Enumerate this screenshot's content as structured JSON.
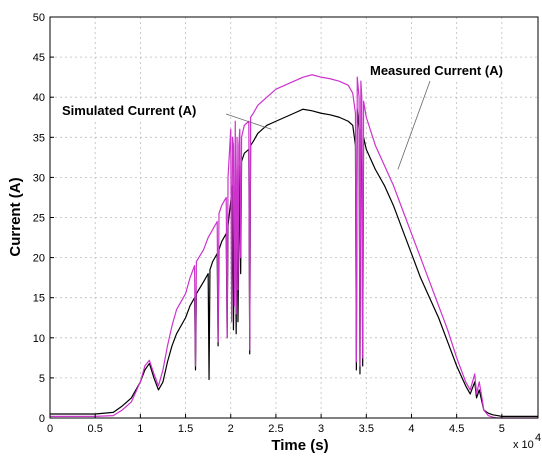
{
  "chart_data": {
    "type": "line",
    "title": "",
    "xlabel": "Time (s)",
    "ylabel": "Current (A)",
    "x_multiplier_label": "x 10",
    "x_multiplier_exponent": "4",
    "xlim": [
      0,
      5.4
    ],
    "ylim": [
      0,
      50
    ],
    "x_ticks": [
      0,
      0.5,
      1,
      1.5,
      2,
      2.5,
      3,
      3.5,
      4,
      4.5,
      5
    ],
    "x_tick_labels": [
      "0",
      "0.5",
      "1",
      "1.5",
      "2",
      "2.5",
      "3",
      "3.5",
      "4",
      "4.5",
      "5"
    ],
    "y_ticks": [
      0,
      5,
      10,
      15,
      20,
      25,
      30,
      35,
      40,
      45,
      50
    ],
    "y_tick_labels": [
      "0",
      "5",
      "10",
      "15",
      "20",
      "25",
      "30",
      "35",
      "40",
      "45",
      "50"
    ],
    "grid": true,
    "annotations": [
      {
        "text": "Measured Current (A)",
        "points_to": [
          3.85,
          31
        ]
      },
      {
        "text": "Simulated Current (A)",
        "points_to": [
          2.45,
          36
        ]
      }
    ],
    "series": [
      {
        "name": "Measured Current (A)",
        "color": "#000000",
        "x": [
          0,
          0.5,
          0.7,
          0.8,
          0.9,
          1.0,
          1.05,
          1.1,
          1.15,
          1.2,
          1.25,
          1.3,
          1.35,
          1.4,
          1.5,
          1.55,
          1.6,
          1.61,
          1.62,
          1.7,
          1.75,
          1.76,
          1.77,
          1.8,
          1.85,
          1.86,
          1.87,
          1.9,
          1.95,
          1.96,
          1.97,
          2.0,
          2.02,
          2.03,
          2.05,
          2.06,
          2.07,
          2.08,
          2.1,
          2.11,
          2.12,
          2.15,
          2.2,
          2.21,
          2.22,
          2.25,
          2.3,
          2.4,
          2.5,
          2.6,
          2.7,
          2.8,
          2.9,
          3.0,
          3.1,
          3.2,
          3.3,
          3.35,
          3.38,
          3.39,
          3.4,
          3.42,
          3.43,
          3.44,
          3.45,
          3.46,
          3.47,
          3.5,
          3.6,
          3.7,
          3.8,
          3.9,
          4.0,
          4.1,
          4.2,
          4.3,
          4.4,
          4.5,
          4.6,
          4.65,
          4.7,
          4.72,
          4.75,
          4.78,
          4.8,
          4.85,
          4.9,
          4.95,
          5.0,
          5.1,
          5.2,
          5.4
        ],
        "y": [
          0.5,
          0.5,
          0.7,
          1.5,
          2.5,
          4.5,
          6.0,
          6.8,
          5.0,
          3.5,
          4.5,
          7.0,
          9.0,
          10.5,
          12.5,
          14.0,
          15.0,
          6.0,
          15.5,
          17.0,
          18.0,
          4.8,
          18.5,
          19.5,
          20.5,
          9.0,
          21.0,
          22.0,
          23.0,
          10.0,
          24.0,
          27.0,
          29.0,
          11.0,
          30.0,
          10.5,
          31.0,
          12.0,
          31.5,
          18.0,
          32.0,
          33.0,
          33.5,
          8.0,
          34.0,
          34.5,
          35.5,
          36.5,
          37.0,
          37.5,
          38.0,
          38.5,
          38.3,
          38.0,
          37.8,
          37.5,
          37.0,
          36.5,
          34.0,
          6.0,
          38.5,
          36.0,
          5.5,
          36.0,
          35.0,
          6.5,
          35.0,
          33.5,
          31.0,
          29.0,
          26.5,
          23.5,
          20.5,
          17.5,
          15.0,
          12.5,
          9.5,
          6.5,
          4.0,
          3.0,
          4.5,
          2.5,
          3.5,
          2.0,
          1.0,
          0.6,
          0.4,
          0.3,
          0.2,
          0.2,
          0.2,
          0.2
        ]
      },
      {
        "name": "Simulated Current (A)",
        "color": "#cc33cc",
        "x": [
          0,
          0.5,
          0.7,
          0.8,
          0.9,
          1.0,
          1.05,
          1.1,
          1.15,
          1.2,
          1.25,
          1.3,
          1.35,
          1.4,
          1.5,
          1.55,
          1.6,
          1.61,
          1.62,
          1.7,
          1.75,
          1.8,
          1.85,
          1.86,
          1.87,
          1.9,
          1.95,
          1.96,
          1.97,
          2.0,
          2.01,
          2.02,
          2.03,
          2.04,
          2.05,
          2.06,
          2.07,
          2.08,
          2.09,
          2.1,
          2.11,
          2.12,
          2.15,
          2.2,
          2.21,
          2.22,
          2.25,
          2.3,
          2.4,
          2.5,
          2.6,
          2.7,
          2.8,
          2.9,
          3.0,
          3.1,
          3.2,
          3.3,
          3.35,
          3.38,
          3.39,
          3.4,
          3.42,
          3.43,
          3.44,
          3.45,
          3.46,
          3.47,
          3.5,
          3.6,
          3.7,
          3.8,
          3.9,
          4.0,
          4.1,
          4.2,
          4.3,
          4.4,
          4.5,
          4.6,
          4.65,
          4.7,
          4.72,
          4.75,
          4.78,
          4.8,
          4.85,
          4.9,
          4.95,
          5.0,
          5.1,
          5.2,
          5.4
        ],
        "y": [
          0.2,
          0.2,
          0.3,
          1.0,
          2.0,
          4.5,
          6.5,
          7.2,
          5.5,
          4.0,
          6.0,
          9.0,
          11.5,
          13.5,
          15.5,
          17.5,
          19.0,
          6.5,
          19.5,
          21.0,
          22.5,
          23.5,
          24.5,
          9.5,
          25.5,
          26.5,
          27.5,
          10.0,
          30.0,
          36.0,
          12.0,
          35.0,
          34.0,
          14.0,
          37.0,
          13.0,
          35.0,
          16.0,
          34.0,
          36.0,
          20.0,
          35.0,
          36.5,
          37.0,
          8.5,
          37.5,
          38.0,
          39.0,
          40.0,
          41.0,
          41.5,
          42.0,
          42.5,
          42.8,
          42.5,
          42.3,
          42.0,
          41.5,
          40.5,
          38.0,
          7.0,
          42.5,
          40.0,
          6.5,
          42.0,
          40.0,
          7.5,
          39.5,
          37.5,
          34.0,
          31.5,
          29.0,
          26.0,
          23.0,
          20.0,
          17.0,
          14.0,
          11.0,
          7.5,
          4.5,
          3.5,
          5.5,
          3.0,
          4.5,
          2.5,
          1.0,
          0.3,
          0.1,
          0.0,
          0.0,
          0.0,
          0.0,
          0.0
        ]
      }
    ]
  }
}
